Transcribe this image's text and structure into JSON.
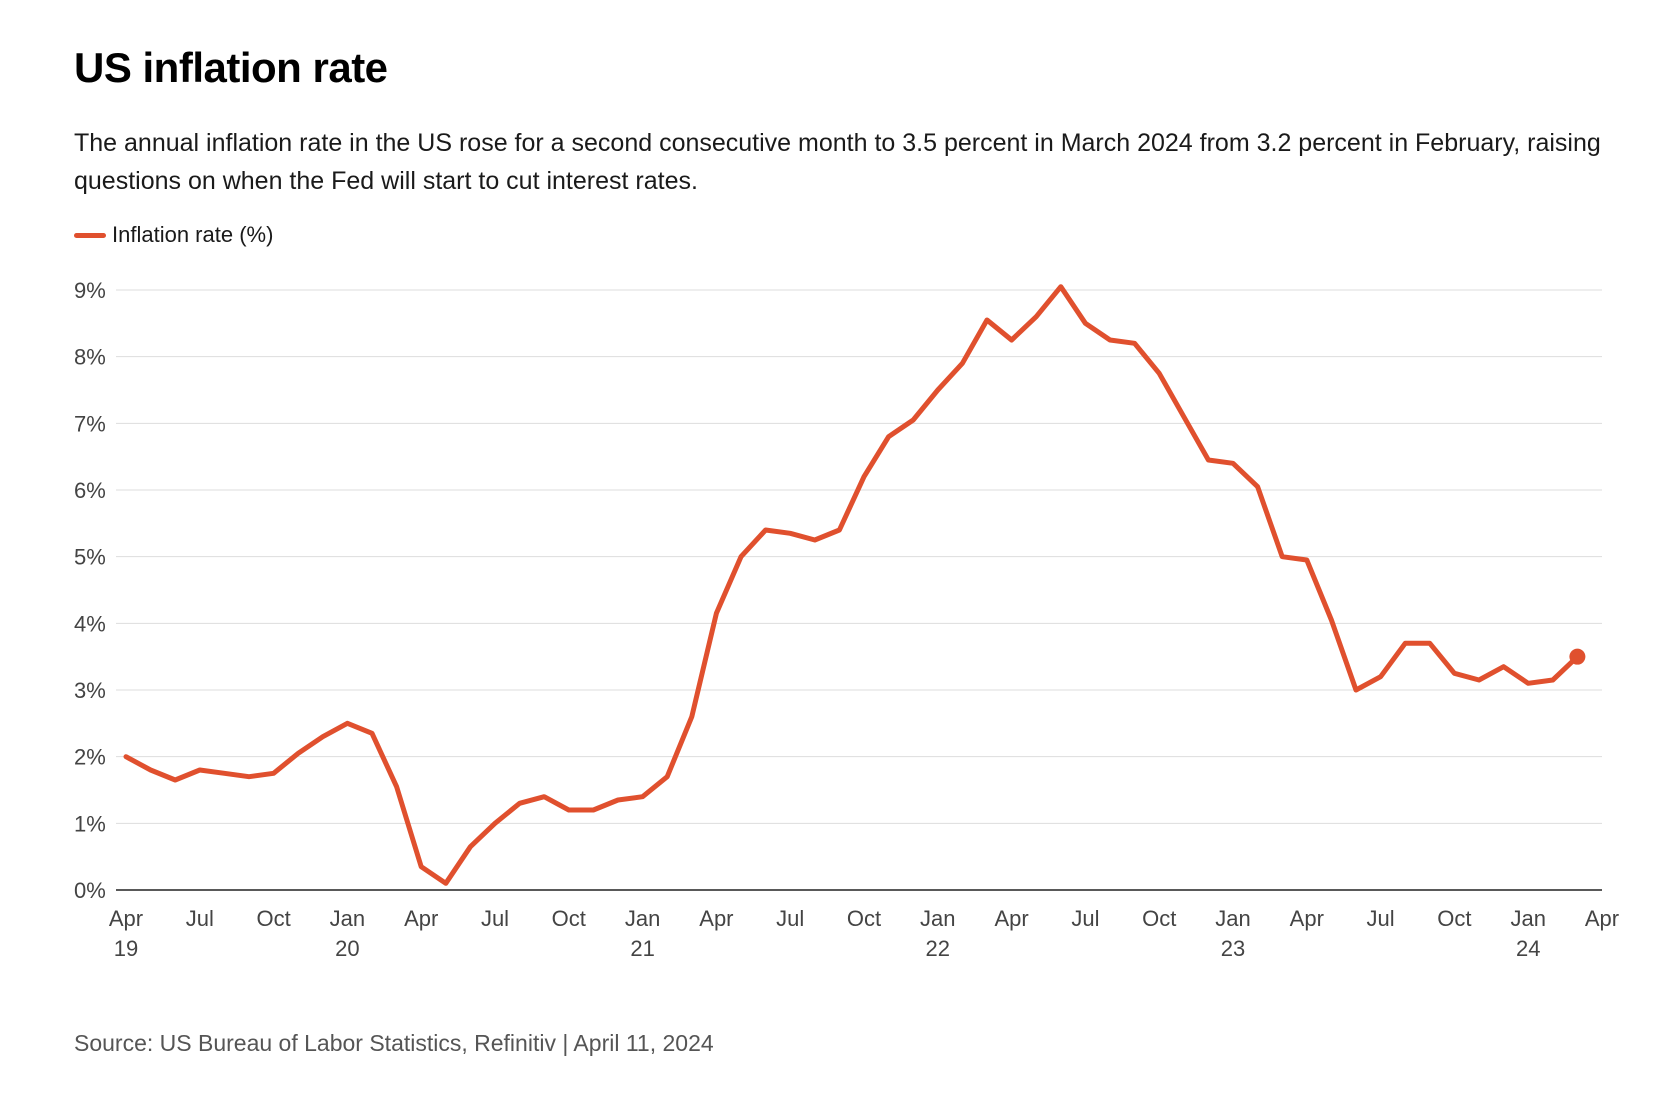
{
  "chart_data": {
    "type": "line",
    "title": "US inflation rate",
    "subtitle": "The annual inflation rate in the US rose for a second consecutive month to 3.5 percent in March 2024 from 3.2 percent in February, raising questions on when the Fed will start to cut interest rates.",
    "source": "Source: US Bureau of Labor Statistics, Refinitiv | April 11, 2024",
    "xlabel": "",
    "ylabel": "",
    "ylim": [
      0,
      9
    ],
    "xlim": [
      "2019-04",
      "2024-04"
    ],
    "grid": true,
    "legend_position": "top-left",
    "color": "#e0502e",
    "yticks": [
      0,
      1,
      2,
      3,
      4,
      5,
      6,
      7,
      8,
      9
    ],
    "ytick_labels": [
      "0%",
      "1%",
      "2%",
      "3%",
      "4%",
      "5%",
      "6%",
      "7%",
      "8%",
      "9%"
    ],
    "xticks": [
      {
        "date": "2019-04",
        "line1": "Apr",
        "line2": "19"
      },
      {
        "date": "2019-07",
        "line1": "Jul",
        "line2": ""
      },
      {
        "date": "2019-10",
        "line1": "Oct",
        "line2": ""
      },
      {
        "date": "2020-01",
        "line1": "Jan",
        "line2": "20"
      },
      {
        "date": "2020-04",
        "line1": "Apr",
        "line2": ""
      },
      {
        "date": "2020-07",
        "line1": "Jul",
        "line2": ""
      },
      {
        "date": "2020-10",
        "line1": "Oct",
        "line2": ""
      },
      {
        "date": "2021-01",
        "line1": "Jan",
        "line2": "21"
      },
      {
        "date": "2021-04",
        "line1": "Apr",
        "line2": ""
      },
      {
        "date": "2021-07",
        "line1": "Jul",
        "line2": ""
      },
      {
        "date": "2021-10",
        "line1": "Oct",
        "line2": ""
      },
      {
        "date": "2022-01",
        "line1": "Jan",
        "line2": "22"
      },
      {
        "date": "2022-04",
        "line1": "Apr",
        "line2": ""
      },
      {
        "date": "2022-07",
        "line1": "Jul",
        "line2": ""
      },
      {
        "date": "2022-10",
        "line1": "Oct",
        "line2": ""
      },
      {
        "date": "2023-01",
        "line1": "Jan",
        "line2": "23"
      },
      {
        "date": "2023-04",
        "line1": "Apr",
        "line2": ""
      },
      {
        "date": "2023-07",
        "line1": "Jul",
        "line2": ""
      },
      {
        "date": "2023-10",
        "line1": "Oct",
        "line2": ""
      },
      {
        "date": "2024-01",
        "line1": "Jan",
        "line2": "24"
      },
      {
        "date": "2024-04",
        "line1": "Apr",
        "line2": ""
      }
    ],
    "series": [
      {
        "name": "Inflation rate (%)",
        "x": [
          "2019-04",
          "2019-05",
          "2019-06",
          "2019-07",
          "2019-08",
          "2019-09",
          "2019-10",
          "2019-11",
          "2019-12",
          "2020-01",
          "2020-02",
          "2020-03",
          "2020-04",
          "2020-05",
          "2020-06",
          "2020-07",
          "2020-08",
          "2020-09",
          "2020-10",
          "2020-11",
          "2020-12",
          "2021-01",
          "2021-02",
          "2021-03",
          "2021-04",
          "2021-05",
          "2021-06",
          "2021-07",
          "2021-08",
          "2021-09",
          "2021-10",
          "2021-11",
          "2021-12",
          "2022-01",
          "2022-02",
          "2022-03",
          "2022-04",
          "2022-05",
          "2022-06",
          "2022-07",
          "2022-08",
          "2022-09",
          "2022-10",
          "2022-11",
          "2022-12",
          "2023-01",
          "2023-02",
          "2023-03",
          "2023-04",
          "2023-05",
          "2023-06",
          "2023-07",
          "2023-08",
          "2023-09",
          "2023-10",
          "2023-11",
          "2023-12",
          "2024-01",
          "2024-02",
          "2024-03"
        ],
        "values": [
          2.0,
          1.8,
          1.65,
          1.8,
          1.75,
          1.7,
          1.75,
          2.05,
          2.3,
          2.5,
          2.35,
          1.55,
          0.35,
          0.1,
          0.65,
          1.0,
          1.3,
          1.4,
          1.2,
          1.2,
          1.35,
          1.4,
          1.7,
          2.6,
          4.15,
          5.0,
          5.4,
          5.35,
          5.25,
          5.4,
          6.2,
          6.8,
          7.05,
          7.5,
          7.9,
          8.55,
          8.25,
          8.6,
          9.05,
          8.5,
          8.25,
          8.2,
          7.75,
          7.1,
          6.45,
          6.4,
          6.05,
          5.0,
          4.95,
          4.05,
          3.0,
          3.2,
          3.7,
          3.7,
          3.25,
          3.15,
          3.35,
          3.1,
          3.15,
          3.5
        ]
      }
    ]
  }
}
